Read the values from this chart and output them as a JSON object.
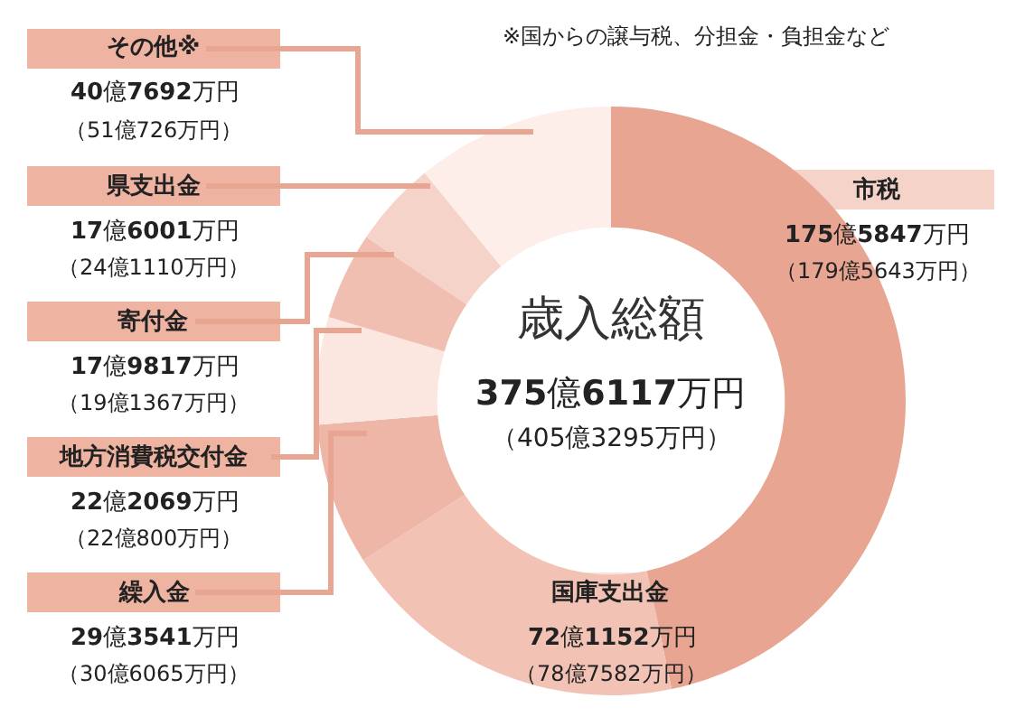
{
  "chart_data": {
    "type": "donut",
    "title": "歳入総額",
    "categories": [
      "市税",
      "国庫支出金",
      "繰入金",
      "地方消費税交付金",
      "寄付金",
      "県支出金",
      "その他※"
    ],
    "values": [
      46.7,
      19.2,
      7.8,
      5.9,
      4.8,
      4.7,
      10.9
    ],
    "colors": [
      "#e8a592",
      "#f2c3b5",
      "#eeb6a6",
      "#fbe6e0",
      "#f1bfb1",
      "#f6d3c9",
      "#fdeee9"
    ],
    "annotations": [
      "375億6117万円",
      "（405億3295万円）",
      "※国からの譲与税、分担金・負担金など",
      "175億5847万円",
      "（179億5643万円）",
      "72億1152万円",
      "（78億7582万円）",
      "29億3541万円",
      "（30億6065万円）",
      "22億2069万円",
      "（22億800万円）",
      "17億9817万円",
      "（19億1367万円）",
      "17億6001万円",
      "（24億1110万円）",
      "40億7692万円",
      "（51億726万円）"
    ],
    "legend": false
  }
}
